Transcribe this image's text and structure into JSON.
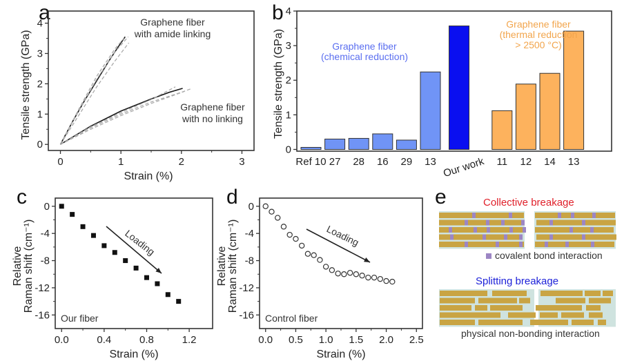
{
  "chart_data": [
    {
      "panel": "a",
      "type": "line",
      "xlabel": "Strain (%)",
      "ylabel": "Tensile strength (GPa)",
      "xlim": [
        -0.2,
        3.2
      ],
      "ylim": [
        -0.2,
        4.4
      ],
      "xticks": [
        "0",
        "1",
        "2",
        "3"
      ],
      "yticks": [
        "0",
        "1",
        "2",
        "3",
        "4"
      ],
      "annotations": [
        {
          "lines": [
            "Graphene fiber",
            "with amide linking"
          ]
        },
        {
          "lines": [
            "Graphene fiber",
            "with no linking"
          ]
        }
      ],
      "series": [
        {
          "name": "amide linking (solid)",
          "style": "solid",
          "x": [
            0,
            0.2,
            0.4,
            0.6,
            0.8,
            1.0,
            1.07
          ],
          "y": [
            0,
            0.75,
            1.45,
            2.1,
            2.75,
            3.35,
            3.55
          ]
        },
        {
          "name": "amide linking (dashed 1)",
          "style": "dashed",
          "x": [
            0,
            0.3,
            0.6,
            0.9,
            1.12
          ],
          "y": [
            0,
            1.1,
            2.15,
            3.05,
            3.55
          ]
        },
        {
          "name": "amide linking (dashed 2)",
          "style": "dashed",
          "x": [
            0,
            0.3,
            0.6,
            0.9,
            1.13
          ],
          "y": [
            0,
            0.95,
            1.9,
            2.75,
            3.35
          ]
        },
        {
          "name": "amide linking (dashed 3)",
          "style": "dashed",
          "x": [
            0,
            0.3,
            0.6,
            0.9,
            1.05
          ],
          "y": [
            0,
            1.15,
            2.25,
            3.15,
            3.5
          ]
        },
        {
          "name": "no linking (solid)",
          "style": "solid",
          "x": [
            0,
            0.5,
            1.0,
            1.5,
            1.8,
            2.02
          ],
          "y": [
            0,
            0.6,
            1.1,
            1.5,
            1.72,
            1.85
          ]
        },
        {
          "name": "no linking (dashed 1)",
          "style": "dashed",
          "x": [
            0,
            0.5,
            1.0,
            1.5,
            2.0,
            2.15
          ],
          "y": [
            0,
            0.55,
            1.0,
            1.4,
            1.72,
            1.83
          ]
        },
        {
          "name": "no linking (dashed 2)",
          "style": "dashed",
          "x": [
            0,
            0.5,
            1.0,
            1.5,
            1.9
          ],
          "y": [
            0,
            0.58,
            1.05,
            1.48,
            1.9
          ]
        },
        {
          "name": "no linking (dashed 3)",
          "style": "dashed",
          "x": [
            0,
            0.5,
            1.0,
            1.5,
            2.05
          ],
          "y": [
            0,
            0.5,
            0.95,
            1.35,
            1.75
          ]
        }
      ]
    },
    {
      "panel": "b",
      "type": "bar",
      "ylabel": "Tensile strength (GPa)",
      "ylim": [
        -0.05,
        4.0
      ],
      "yticks": [
        "0",
        "1",
        "2",
        "3",
        "4"
      ],
      "categories": [
        "Ref 10",
        "27",
        "28",
        "16",
        "29",
        "13",
        "Our work",
        "11",
        "12",
        "14",
        "13"
      ],
      "values": [
        0.06,
        0.3,
        0.32,
        0.45,
        0.27,
        2.24,
        3.57,
        1.12,
        1.89,
        2.2,
        3.42
      ],
      "groups": [
        "chemical",
        "chemical",
        "chemical",
        "chemical",
        "chemical",
        "chemical",
        "ours",
        "thermal",
        "thermal",
        "thermal",
        "thermal"
      ],
      "colors": {
        "chemical": "#7094f6",
        "ours": "#0a0ff0",
        "thermal": "#fdb25d"
      },
      "annotations": [
        {
          "lines": [
            "Graphene fiber",
            "(chemical reduction)"
          ],
          "color": "#5a6ef0"
        },
        {
          "lines": [
            "Graphene fiber",
            "(thermal reduction",
            "> 2500 °C)"
          ],
          "color": "#f2a54c"
        }
      ]
    },
    {
      "panel": "c",
      "type": "scatter",
      "marker": "filled-square",
      "xlabel": "Strain (%)",
      "ylabel_lines": [
        "Relative",
        "Raman shift (cm⁻¹)"
      ],
      "xlim": [
        -0.06,
        1.42
      ],
      "ylim": [
        -18,
        1.2
      ],
      "xticks": [
        "0.0",
        "0.4",
        "0.8",
        "1.2"
      ],
      "yticks": [
        "0",
        "-4",
        "-8",
        "-12",
        "-16"
      ],
      "label": "Our fiber",
      "arrow_label": "Loading",
      "x": [
        0,
        0.1,
        0.2,
        0.3,
        0.4,
        0.5,
        0.6,
        0.7,
        0.8,
        0.9,
        1.0,
        1.1
      ],
      "y": [
        0,
        -1.2,
        -3.0,
        -4.3,
        -5.8,
        -6.8,
        -8.0,
        -9.1,
        -10.5,
        -11.4,
        -13.0,
        -14.0
      ]
    },
    {
      "panel": "d",
      "type": "scatter",
      "marker": "open-circle",
      "xlabel": "Strain (%)",
      "ylabel_lines": [
        "Relative",
        "Raman shift (cm⁻¹)"
      ],
      "xlim": [
        -0.1,
        2.6
      ],
      "ylim": [
        -18,
        1.2
      ],
      "xticks": [
        "0.0",
        "0.5",
        "1.0",
        "1.5",
        "2.0",
        "2.5"
      ],
      "yticks": [
        "0",
        "-4",
        "-8",
        "-12",
        "-16"
      ],
      "label": "Control fiber",
      "arrow_label": "Loading",
      "x": [
        0,
        0.1,
        0.2,
        0.3,
        0.4,
        0.5,
        0.6,
        0.7,
        0.8,
        0.9,
        1.0,
        1.1,
        1.2,
        1.3,
        1.4,
        1.5,
        1.6,
        1.7,
        1.8,
        1.9,
        2.0,
        2.1
      ],
      "y": [
        0,
        -0.8,
        -1.7,
        -3.0,
        -4.2,
        -4.8,
        -5.8,
        -7.0,
        -7.2,
        -7.9,
        -8.9,
        -9.4,
        -9.9,
        -10.0,
        -9.8,
        -10.0,
        -10.2,
        -10.5,
        -10.5,
        -10.7,
        -11.0,
        -11.1
      ]
    }
  ],
  "panel_labels": {
    "a": "a",
    "b": "b",
    "c": "c",
    "d": "d",
    "e": "e"
  },
  "schematic": {
    "collective_title": "Collective breakage",
    "collective_color": "#e0202a",
    "covalent_legend": "covalent bond interaction",
    "splitting_title": "Splitting breakage",
    "splitting_color": "#1b1fd8",
    "physical_legend": "physical non-bonding interaction",
    "colors": {
      "sheet": "#c9a443",
      "gap": "#cfe3df",
      "bond": "#9c86c4"
    }
  }
}
